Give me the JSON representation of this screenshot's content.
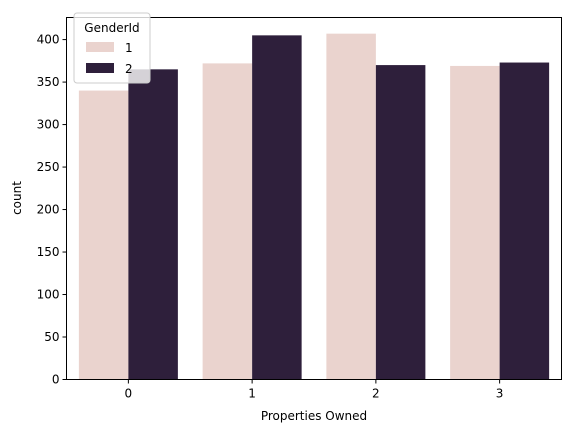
{
  "chart_data": {
    "type": "bar",
    "categories": [
      "0",
      "1",
      "2",
      "3"
    ],
    "series": [
      {
        "name": "1",
        "values": [
          340,
          372,
          407,
          369
        ],
        "color": "#ead3ce"
      },
      {
        "name": "2",
        "values": [
          365,
          405,
          370,
          373
        ],
        "color": "#2e1f3b"
      }
    ],
    "xlabel": "Properties Owned",
    "ylabel": "count",
    "ylim": [
      0,
      426
    ],
    "yticks": [
      0,
      50,
      100,
      150,
      200,
      250,
      300,
      350,
      400
    ],
    "grid": false,
    "legend": {
      "title": "GenderId",
      "placement": "top-left"
    }
  }
}
